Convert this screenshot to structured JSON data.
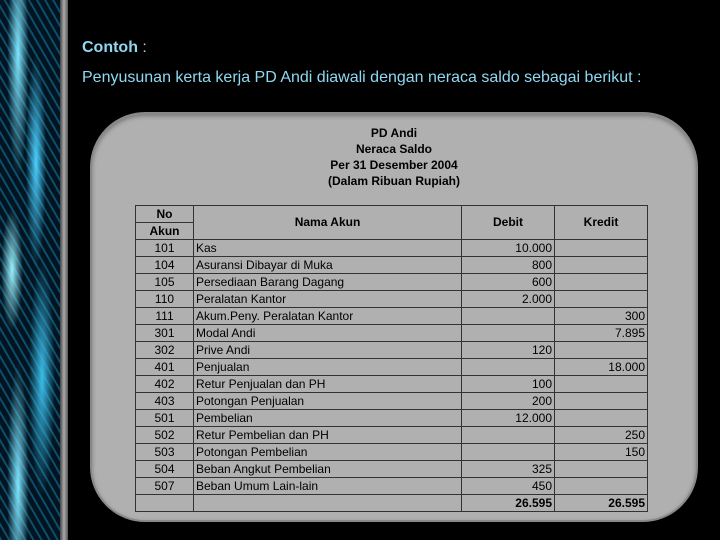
{
  "slide": {
    "heading": "Contoh",
    "heading_suffix": " :",
    "paragraph": "Penyusunan kerta kerja PD Andi diawali dengan neraca saldo sebagai berikut :"
  },
  "report": {
    "company": "PD Andi",
    "title": "Neraca Saldo",
    "date": "Per 31 Desember 2004",
    "unit": "(Dalam Ribuan Rupiah)"
  },
  "table": {
    "headers": {
      "no_line1": "No",
      "no_line2": "Akun",
      "name": "Nama Akun",
      "debit": "Debit",
      "kredit": "Kredit"
    },
    "rows": [
      {
        "no": "101",
        "name": "Kas",
        "debit": "10.000",
        "kredit": ""
      },
      {
        "no": "104",
        "name": "Asuransi Dibayar di Muka",
        "debit": "800",
        "kredit": ""
      },
      {
        "no": "105",
        "name": "Persediaan Barang Dagang",
        "debit": "600",
        "kredit": ""
      },
      {
        "no": "110",
        "name": "Peralatan Kantor",
        "debit": "2.000",
        "kredit": ""
      },
      {
        "no": "111",
        "name": "Akum.Peny. Peralatan Kantor",
        "debit": "",
        "kredit": "300"
      },
      {
        "no": "301",
        "name": "Modal Andi",
        "debit": "",
        "kredit": "7.895"
      },
      {
        "no": "302",
        "name": "Prive Andi",
        "debit": "120",
        "kredit": ""
      },
      {
        "no": "401",
        "name": "Penjualan",
        "debit": "",
        "kredit": "18.000"
      },
      {
        "no": "402",
        "name": "Retur Penjualan dan PH",
        "debit": "100",
        "kredit": ""
      },
      {
        "no": "403",
        "name": "Potongan Penjualan",
        "debit": "200",
        "kredit": ""
      },
      {
        "no": "501",
        "name": "Pembelian",
        "debit": "12.000",
        "kredit": ""
      },
      {
        "no": "502",
        "name": "Retur Pembelian dan PH",
        "debit": "",
        "kredit": "250"
      },
      {
        "no": "503",
        "name": "Potongan Pembelian",
        "debit": "",
        "kredit": "150"
      },
      {
        "no": "504",
        "name": "Beban Angkut Pembelian",
        "debit": "325",
        "kredit": ""
      },
      {
        "no": "507",
        "name": "Beban Umum Lain-lain",
        "debit": "450",
        "kredit": ""
      }
    ],
    "total": {
      "debit": "26.595",
      "kredit": "26.595"
    }
  }
}
